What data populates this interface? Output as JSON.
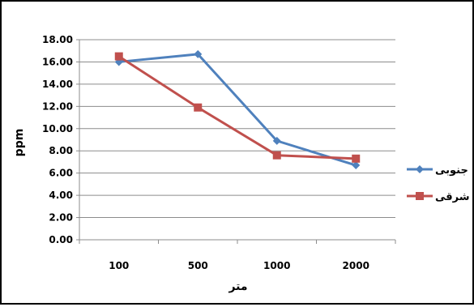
{
  "chart_data": {
    "type": "line",
    "categories": [
      "100",
      "500",
      "1000",
      "2000"
    ],
    "xlabel": "متر",
    "ylabel": "ppm",
    "ylim": [
      0,
      18
    ],
    "yticks": [
      "0.00",
      "2.00",
      "4.00",
      "6.00",
      "8.00",
      "10.00",
      "12.00",
      "14.00",
      "16.00",
      "18.00"
    ],
    "grid": true,
    "legend_position": "right",
    "series": [
      {
        "name": "جنوبی",
        "values": [
          16.0,
          16.7,
          8.9,
          6.7
        ],
        "color": "#4F81BD",
        "marker": "diamond"
      },
      {
        "name": "شرقی",
        "values": [
          16.5,
          11.9,
          7.6,
          7.3
        ],
        "color": "#C0504D",
        "marker": "square"
      }
    ]
  }
}
